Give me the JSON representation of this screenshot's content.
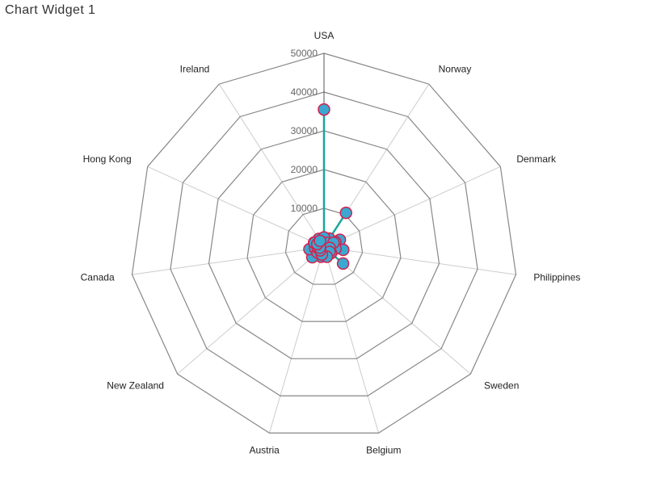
{
  "widget": {
    "title": "Chart Widget 1"
  },
  "chart_data": {
    "type": "radar",
    "title": "",
    "categories": [
      "USA",
      "Norway",
      "Denmark",
      "Philippines",
      "Sweden",
      "Belgium",
      "Austria",
      "New Zealand",
      "Canada",
      "Hong Kong",
      "Ireland"
    ],
    "axis_ticks": [
      10000,
      20000,
      30000,
      40000,
      50000
    ],
    "rlim": [
      0,
      50000
    ],
    "grid": true,
    "series": [
      {
        "values": [
          35500,
          10500,
          4500,
          5000,
          6500,
          2000,
          2600,
          4000,
          3800,
          2800,
          1200
        ]
      },
      {
        "values": [
          2000,
          1800,
          3200,
          2100,
          1300,
          1700,
          1900,
          1500,
          2300,
          1400,
          2500
        ]
      },
      {
        "values": [
          1200,
          2600,
          1500,
          3000,
          2400,
          1100,
          1300,
          2200,
          1600,
          2700,
          1500
        ]
      },
      {
        "values": [
          2500,
          1300,
          2700,
          1500,
          1900,
          2600,
          2000,
          1300,
          1100,
          1900,
          1900
        ]
      }
    ],
    "colors": {
      "line": "#17a89b",
      "marker_fill": "#3aa8d0",
      "marker_stroke": "#d4204f",
      "grid_polygon": "#888888",
      "spoke": "#cccccc"
    }
  }
}
